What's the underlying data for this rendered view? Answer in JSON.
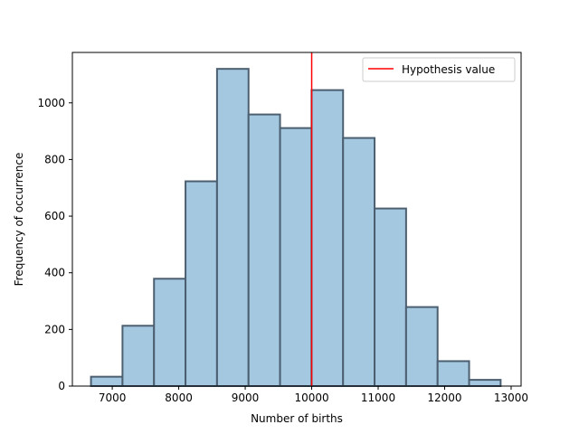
{
  "chart_data": {
    "type": "bar",
    "title": "",
    "xlabel": "Number of births",
    "ylabel": "Frequency of occurrence",
    "xlim": [
      6400,
      13150
    ],
    "ylim": [
      0,
      1178
    ],
    "xticks": [
      7000,
      8000,
      9000,
      10000,
      11000,
      12000,
      13000
    ],
    "yticks": [
      0,
      200,
      400,
      600,
      800,
      1000
    ],
    "bins": [
      {
        "x0": 6680,
        "x1": 7154,
        "count": 33
      },
      {
        "x0": 7154,
        "x2": 0,
        "x1": 7628,
        "count": 213
      },
      {
        "x0": 7628,
        "x1": 8102,
        "count": 379
      },
      {
        "x0": 8102,
        "x1": 8576,
        "count": 723
      },
      {
        "x0": 8576,
        "x1": 9050,
        "count": 1120
      },
      {
        "x0": 9050,
        "x1": 9524,
        "count": 959
      },
      {
        "x0": 9524,
        "x1": 9998,
        "count": 911
      },
      {
        "x0": 9998,
        "x1": 10472,
        "count": 1045
      },
      {
        "x0": 10472,
        "x1": 10946,
        "count": 876
      },
      {
        "x0": 10946,
        "x1": 11420,
        "count": 627
      },
      {
        "x0": 11420,
        "x1": 11894,
        "count": 279
      },
      {
        "x0": 11894,
        "x1": 12368,
        "count": 88
      },
      {
        "x0": 12368,
        "x1": 12842,
        "count": 22
      }
    ],
    "vline": {
      "x": 10000,
      "name": "Hypothesis value",
      "color": "#ff0000"
    },
    "bar_fill": "#a5c8e1",
    "bar_edge": "#4b5f70",
    "legend": {
      "placement": "top-right",
      "entries": [
        "Hypothesis value"
      ]
    },
    "grid": false
  }
}
